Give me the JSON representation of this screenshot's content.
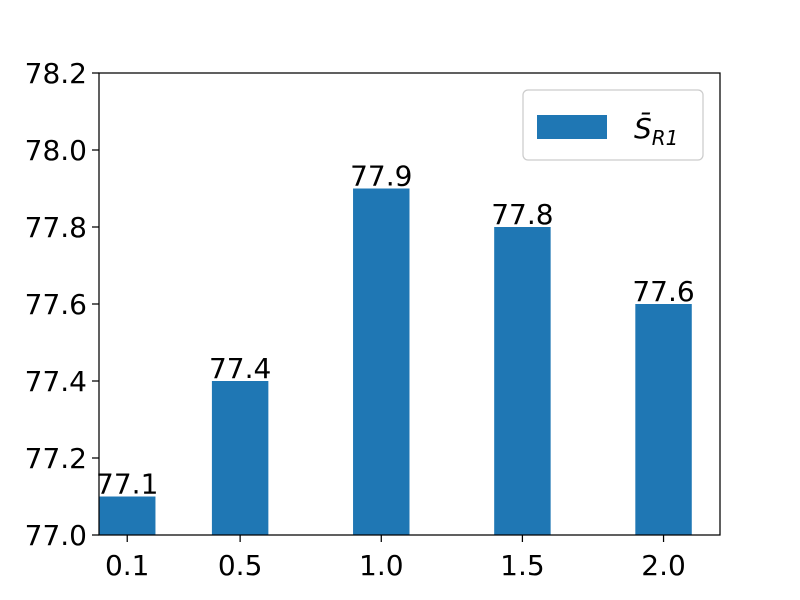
{
  "chart_data": {
    "type": "bar",
    "x": [
      0.1,
      0.5,
      1.0,
      1.5,
      2.0
    ],
    "categories": [
      "0.1",
      "0.5",
      "1.0",
      "1.5",
      "2.0"
    ],
    "series": [
      {
        "name": "S̄_R1",
        "values": [
          77.1,
          77.4,
          77.9,
          77.8,
          77.6
        ],
        "color": "#1f77b4"
      }
    ],
    "data_labels": [
      "77.1",
      "77.4",
      "77.9",
      "77.8",
      "77.6"
    ],
    "ylim": [
      77.0,
      78.2
    ],
    "yticks": [
      "77.0",
      "77.2",
      "77.4",
      "77.6",
      "77.8",
      "78.0",
      "78.2"
    ],
    "title": "",
    "xlabel": "",
    "ylabel": "",
    "grid": false,
    "legend": {
      "position": "top-right",
      "symbol": "S̄",
      "subscript": "R1"
    }
  }
}
